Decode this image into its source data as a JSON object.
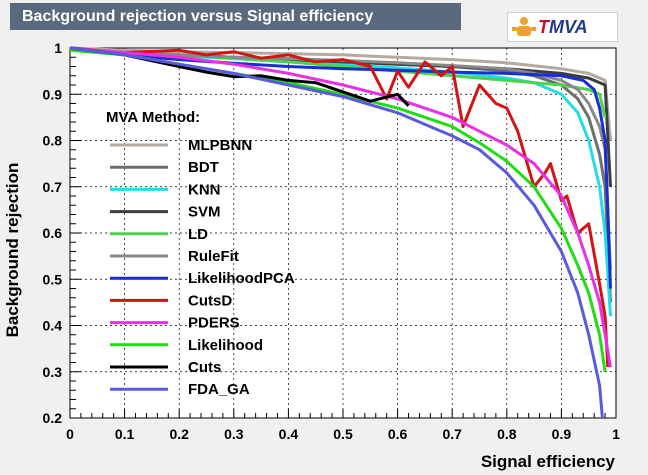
{
  "chart_data": {
    "type": "line",
    "title": "Background rejection versus Signal efficiency",
    "xlabel": "Signal efficiency",
    "ylabel": "Background rejection",
    "xlim": [
      0,
      1
    ],
    "ylim": [
      0.2,
      1
    ],
    "xticks": [
      "0",
      "0.1",
      "0.2",
      "0.3",
      "0.4",
      "0.5",
      "0.6",
      "0.7",
      "0.8",
      "0.9",
      "1"
    ],
    "yticks": [
      "0.2",
      "0.3",
      "0.4",
      "0.5",
      "0.6",
      "0.7",
      "0.8",
      "0.9",
      "1"
    ],
    "grid": true,
    "legend_title": "MVA Method:",
    "legend_position": "left",
    "series": [
      {
        "name": "MLPBNN",
        "color": "#b4aaa0",
        "x": [
          0,
          0.1,
          0.2,
          0.3,
          0.4,
          0.5,
          0.6,
          0.7,
          0.8,
          0.9,
          0.95,
          0.98,
          0.99
        ],
        "y": [
          1,
          0.995,
          0.992,
          0.99,
          0.988,
          0.985,
          0.98,
          0.975,
          0.968,
          0.955,
          0.945,
          0.93,
          0.8
        ]
      },
      {
        "name": "BDT",
        "color": "#6e6e6e",
        "x": [
          0,
          0.1,
          0.2,
          0.3,
          0.4,
          0.5,
          0.6,
          0.7,
          0.8,
          0.85,
          0.9,
          0.93,
          0.95,
          0.97,
          0.98,
          0.99
        ],
        "y": [
          1,
          0.99,
          0.985,
          0.98,
          0.975,
          0.97,
          0.965,
          0.96,
          0.95,
          0.94,
          0.92,
          0.89,
          0.85,
          0.77,
          0.7,
          0.45
        ]
      },
      {
        "name": "KNN",
        "color": "#22dce6",
        "x": [
          0,
          0.1,
          0.2,
          0.3,
          0.4,
          0.5,
          0.6,
          0.7,
          0.8,
          0.85,
          0.9,
          0.93,
          0.95,
          0.97,
          0.98,
          0.99
        ],
        "y": [
          1,
          0.99,
          0.983,
          0.977,
          0.97,
          0.964,
          0.957,
          0.948,
          0.935,
          0.925,
          0.9,
          0.86,
          0.8,
          0.7,
          0.6,
          0.42
        ]
      },
      {
        "name": "SVM",
        "color": "#3c3c3c",
        "x": [
          0,
          0.1,
          0.2,
          0.3,
          0.4,
          0.5,
          0.6,
          0.7,
          0.8,
          0.9,
          0.95,
          0.98,
          0.99
        ],
        "y": [
          1,
          0.99,
          0.985,
          0.98,
          0.975,
          0.97,
          0.965,
          0.96,
          0.955,
          0.945,
          0.935,
          0.92,
          0.7
        ]
      },
      {
        "name": "LD",
        "color": "#4ed24e",
        "x": [
          0,
          0.1,
          0.2,
          0.3,
          0.4,
          0.5,
          0.6,
          0.7,
          0.8,
          0.9,
          0.95,
          0.97,
          0.98
        ],
        "y": [
          1,
          0.99,
          0.985,
          0.978,
          0.97,
          0.96,
          0.95,
          0.94,
          0.93,
          0.92,
          0.91,
          0.9,
          0.85
        ]
      },
      {
        "name": "RuleFit",
        "color": "#888888",
        "x": [
          0,
          0.1,
          0.2,
          0.3,
          0.4,
          0.5,
          0.6,
          0.7,
          0.8,
          0.85,
          0.9,
          0.93,
          0.95,
          0.97,
          0.98,
          0.99
        ],
        "y": [
          1,
          0.99,
          0.985,
          0.98,
          0.977,
          0.973,
          0.968,
          0.962,
          0.955,
          0.945,
          0.93,
          0.91,
          0.88,
          0.83,
          0.78,
          0.52
        ]
      },
      {
        "name": "LikelihoodPCA",
        "color": "#1a2fd2",
        "x": [
          0,
          0.1,
          0.2,
          0.3,
          0.4,
          0.5,
          0.6,
          0.7,
          0.8,
          0.9,
          0.94,
          0.96,
          0.97,
          0.98,
          0.985,
          0.99
        ],
        "y": [
          1,
          0.985,
          0.975,
          0.967,
          0.96,
          0.955,
          0.952,
          0.948,
          0.945,
          0.94,
          0.93,
          0.91,
          0.87,
          0.8,
          0.65,
          0.48
        ]
      },
      {
        "name": "CutsD",
        "color": "#d21414",
        "x": [
          0.1,
          0.2,
          0.25,
          0.3,
          0.35,
          0.4,
          0.45,
          0.5,
          0.55,
          0.58,
          0.6,
          0.62,
          0.65,
          0.68,
          0.7,
          0.72,
          0.75,
          0.78,
          0.8,
          0.82,
          0.85,
          0.87,
          0.88,
          0.9,
          0.91,
          0.93,
          0.95,
          0.97,
          0.98,
          0.985
        ],
        "y": [
          0.99,
          0.995,
          0.985,
          0.992,
          0.978,
          0.985,
          0.97,
          0.975,
          0.96,
          0.89,
          0.95,
          0.915,
          0.97,
          0.94,
          0.96,
          0.83,
          0.92,
          0.88,
          0.87,
          0.82,
          0.7,
          0.73,
          0.75,
          0.67,
          0.68,
          0.6,
          0.62,
          0.49,
          0.42,
          0.31
        ]
      },
      {
        "name": "PDERS",
        "color": "#e632e6",
        "x": [
          0,
          0.1,
          0.2,
          0.3,
          0.4,
          0.5,
          0.6,
          0.7,
          0.8,
          0.85,
          0.9,
          0.93,
          0.95,
          0.97,
          0.98,
          0.99
        ],
        "y": [
          1,
          0.99,
          0.98,
          0.965,
          0.945,
          0.92,
          0.89,
          0.85,
          0.79,
          0.75,
          0.68,
          0.6,
          0.53,
          0.45,
          0.38,
          0.31
        ]
      },
      {
        "name": "Likelihood",
        "color": "#22dc14",
        "x": [
          0,
          0.1,
          0.2,
          0.3,
          0.4,
          0.5,
          0.6,
          0.7,
          0.75,
          0.8,
          0.85,
          0.9,
          0.93,
          0.95,
          0.97,
          0.98
        ],
        "y": [
          0.995,
          0.985,
          0.965,
          0.945,
          0.925,
          0.9,
          0.87,
          0.83,
          0.795,
          0.755,
          0.7,
          0.61,
          0.53,
          0.47,
          0.38,
          0.3
        ]
      },
      {
        "name": "Cuts",
        "color": "#000000",
        "x": [
          0,
          0.1,
          0.2,
          0.25,
          0.3,
          0.35,
          0.4,
          0.45,
          0.5,
          0.55,
          0.6,
          0.62
        ],
        "y": [
          1,
          0.985,
          0.96,
          0.948,
          0.938,
          0.94,
          0.93,
          0.925,
          0.905,
          0.885,
          0.9,
          0.875
        ]
      },
      {
        "name": "FDA_GA",
        "color": "#5a5adc",
        "x": [
          0,
          0.1,
          0.2,
          0.3,
          0.4,
          0.5,
          0.6,
          0.7,
          0.75,
          0.8,
          0.85,
          0.9,
          0.93,
          0.95,
          0.97,
          0.975
        ],
        "y": [
          1,
          0.985,
          0.965,
          0.945,
          0.92,
          0.895,
          0.86,
          0.81,
          0.78,
          0.73,
          0.66,
          0.56,
          0.47,
          0.38,
          0.27,
          0.2
        ]
      }
    ]
  },
  "logo": {
    "t": "T",
    "rest": "MVA"
  }
}
